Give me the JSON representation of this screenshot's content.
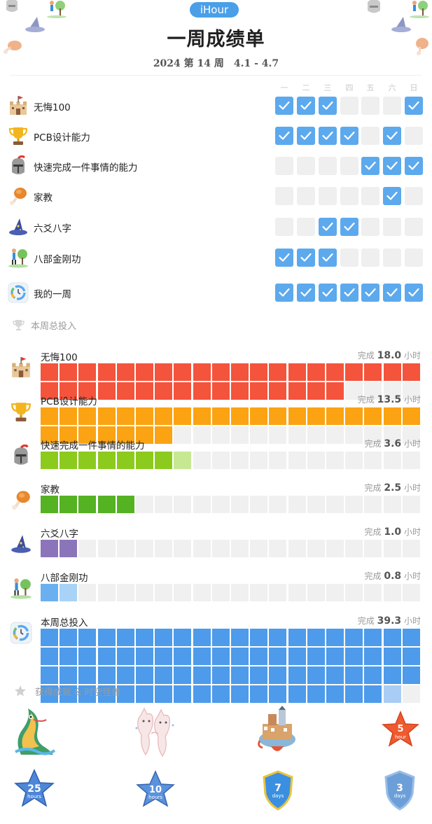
{
  "header": {
    "app_name": "iHour",
    "title": "一周成绩单",
    "year": "2024",
    "week_label": "第 14 周",
    "date_range": "4.1 - 4.7"
  },
  "weekdays": [
    "一",
    "二",
    "三",
    "四",
    "五",
    "六",
    "日"
  ],
  "habits": [
    {
      "name": "无悔100",
      "icon": "castle-icon",
      "days": [
        true,
        true,
        true,
        false,
        false,
        false,
        true
      ]
    },
    {
      "name": "PCB设计能力",
      "icon": "trophy-icon",
      "days": [
        true,
        true,
        true,
        true,
        false,
        true,
        false
      ]
    },
    {
      "name": "快速完成一件事情的能力",
      "icon": "knight-helmet-icon",
      "days": [
        false,
        false,
        false,
        false,
        true,
        true,
        true
      ]
    },
    {
      "name": "家教",
      "icon": "drumstick-icon",
      "days": [
        false,
        false,
        false,
        false,
        false,
        true,
        false
      ]
    },
    {
      "name": "六爻八字",
      "icon": "wizard-hat-icon",
      "days": [
        false,
        false,
        true,
        true,
        false,
        false,
        false
      ]
    },
    {
      "name": "八部金刚功",
      "icon": "exercise-figure-icon",
      "days": [
        true,
        true,
        true,
        false,
        false,
        false,
        false
      ]
    },
    {
      "name": "我的一周",
      "icon": "week-clock-icon",
      "days": [
        true,
        true,
        true,
        true,
        true,
        true,
        true
      ]
    }
  ],
  "totals_section_label": "本周总投入",
  "totals": [
    {
      "name": "无悔100",
      "icon": "castle-icon",
      "done_label": "完成",
      "hours": "18.0",
      "unit": "小时",
      "value": 18.0,
      "color": "#f4533c",
      "light": "#f9a597"
    },
    {
      "name": "PCB设计能力",
      "icon": "trophy-icon",
      "done_label": "完成",
      "hours": "13.5",
      "unit": "小时",
      "value": 13.5,
      "color": "#fba312",
      "light": "#fbd08c"
    },
    {
      "name": "快速完成一件事情的能力",
      "icon": "knight-helmet-icon",
      "done_label": "完成",
      "hours": "3.6",
      "unit": "小时",
      "value": 3.6,
      "color": "#8ccb1d",
      "light": "#c6e892"
    },
    {
      "name": "家教",
      "icon": "drumstick-icon",
      "done_label": "完成",
      "hours": "2.5",
      "unit": "小时",
      "value": 2.5,
      "color": "#54b223",
      "light": "#aad996"
    },
    {
      "name": "六爻八字",
      "icon": "wizard-hat-icon",
      "done_label": "完成",
      "hours": "1.0",
      "unit": "小时",
      "value": 1.0,
      "color": "#8c74bb",
      "light": "#c5b8de"
    },
    {
      "name": "八部金刚功",
      "icon": "exercise-figure-icon",
      "done_label": "完成",
      "hours": "0.8",
      "unit": "小时",
      "value": 0.8,
      "color": "#6ab0f0",
      "light": "#a8d2f6"
    },
    {
      "name": "本周总投入",
      "icon": "week-clock-icon",
      "done_label": "完成",
      "hours": "39.3",
      "unit": "小时",
      "value": 39.3,
      "color": "#4d9bea",
      "light": "#a9cdf4"
    }
  ],
  "achievements_section_label": "获得成就 & 时空怪兽",
  "achievements": [
    {
      "icon": "sea-dragon-monster-icon"
    },
    {
      "icon": "twin-cats-monster-icon"
    },
    {
      "icon": "floating-castle-monster-icon"
    },
    {
      "icon": "star-badge-icon",
      "number": "5",
      "unit": "hour",
      "color": "#ef5a2e"
    },
    {
      "icon": "star-badge-icon",
      "number": "25",
      "unit": "hours",
      "color": "#4e86d8"
    },
    {
      "icon": "star-badge-icon",
      "number": "10",
      "unit": "hours",
      "color": "#5b92dc"
    },
    {
      "icon": "shield-badge-icon",
      "number": "7",
      "unit": "days",
      "color": "#3b8fe0"
    },
    {
      "icon": "shield-badge-icon",
      "number": "3",
      "unit": "days",
      "color": "#6c9fd8"
    }
  ]
}
